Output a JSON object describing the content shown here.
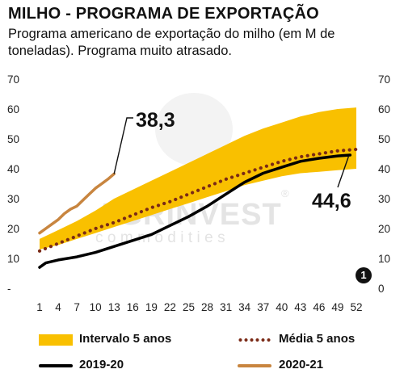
{
  "title": "MILHO - PROGRAMA DE EXPORTAÇÃO",
  "subtitle": "Programa americano de exportação do milho (em M de toneladas). Programa muito atrasado.",
  "watermark": {
    "name": "AGRINVEST",
    "tagline": "commodities",
    "mark": "®"
  },
  "marker_label": "1",
  "chart_data": {
    "type": "line",
    "x_ticks": [
      "1",
      "4",
      "7",
      "10",
      "13",
      "16",
      "19",
      "22",
      "25",
      "28",
      "31",
      "34",
      "37",
      "40",
      "43",
      "46",
      "49",
      "52"
    ],
    "y_ticks_left": [
      "-",
      "10",
      "20",
      "30",
      "40",
      "50",
      "60",
      "70"
    ],
    "y_ticks_right": [
      "0",
      "10",
      "20",
      "30",
      "40",
      "50",
      "60",
      "70"
    ],
    "ylim": [
      0,
      70
    ],
    "xlim": [
      1,
      52
    ],
    "colors": {
      "band": "#F9C000",
      "media": "#7a2a16",
      "s2019": "#000000",
      "s2020": "#C8853F"
    },
    "annotations": [
      {
        "text": "38,3",
        "series": "2020-21"
      },
      {
        "text": "44,6",
        "series": "2019-20"
      }
    ],
    "legend": [
      "Intervalo 5 anos",
      "Média 5 anos",
      "2019-20",
      "2020-21"
    ],
    "band": {
      "name": "Intervalo 5 anos",
      "x": [
        1,
        4,
        7,
        10,
        13,
        16,
        19,
        22,
        25,
        28,
        31,
        34,
        37,
        40,
        43,
        46,
        49,
        52
      ],
      "lower": [
        13,
        14.5,
        16.5,
        18.5,
        20.5,
        22.5,
        24.5,
        26.5,
        28.5,
        30.5,
        32.5,
        34.5,
        36,
        37.5,
        38.5,
        39,
        39.5,
        40
      ],
      "upper": [
        16.5,
        19.5,
        22.5,
        26,
        30,
        33,
        36,
        39,
        42,
        45,
        48,
        51,
        53.5,
        55.5,
        57.5,
        59,
        60,
        60.5
      ]
    },
    "series": [
      {
        "name": "Média 5 anos",
        "x": [
          1,
          4,
          7,
          10,
          13,
          16,
          19,
          22,
          25,
          28,
          31,
          34,
          37,
          40,
          43,
          46,
          49,
          52
        ],
        "values": [
          12.5,
          15,
          17.5,
          20,
          22,
          24.5,
          27,
          29,
          31.5,
          34,
          36.5,
          38.5,
          40.5,
          42.5,
          44,
          45,
          46,
          46.5
        ]
      },
      {
        "name": "2019-20",
        "x": [
          1,
          2,
          4,
          7,
          10,
          13,
          16,
          19,
          22,
          25,
          28,
          31,
          34,
          37,
          40,
          43,
          46,
          49,
          51
        ],
        "values": [
          7,
          8.5,
          9.5,
          10.5,
          12,
          14,
          16,
          18,
          21,
          24,
          27.5,
          31.5,
          35.5,
          38.5,
          40.5,
          42.5,
          43.5,
          44.3,
          44.6
        ]
      },
      {
        "name": "2020-21",
        "x": [
          1,
          2,
          3,
          4,
          5,
          6,
          7,
          8,
          9,
          10,
          11,
          12,
          13
        ],
        "values": [
          18.5,
          20,
          21.5,
          23,
          25,
          26.5,
          27.5,
          29.5,
          31.5,
          33.5,
          35,
          36.5,
          38.3
        ]
      }
    ]
  }
}
